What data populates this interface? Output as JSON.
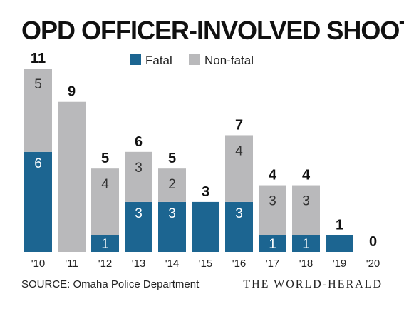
{
  "chart_data": {
    "type": "bar",
    "stacked": true,
    "title": "OPD OFFICER-INVOLVED SHOOTINGS",
    "categories": [
      "'10",
      "'11",
      "'12",
      "'13",
      "'14",
      "'15",
      "'16",
      "'17",
      "'18",
      "'19",
      "'20"
    ],
    "series": [
      {
        "name": "Fatal",
        "color": "#1c6591",
        "values": [
          6,
          0,
          1,
          3,
          3,
          3,
          3,
          1,
          1,
          1,
          0
        ],
        "labels": [
          "6",
          "",
          "1",
          "3",
          "3",
          "",
          "3",
          "1",
          "1",
          "",
          ""
        ]
      },
      {
        "name": "Non-fatal",
        "color": "#b9b9bb",
        "values": [
          5,
          9,
          4,
          3,
          2,
          0,
          4,
          3,
          3,
          0,
          0
        ],
        "labels": [
          "5",
          "",
          "4",
          "3",
          "2",
          "",
          "4",
          "3",
          "3",
          "",
          ""
        ]
      }
    ],
    "totals": [
      "11",
      "9",
      "5",
      "6",
      "5",
      "3",
      "7",
      "4",
      "4",
      "1",
      "0"
    ],
    "ylim": [
      0,
      11
    ],
    "grid": false,
    "legend": "top",
    "xlabel": "",
    "ylabel": ""
  },
  "source": "SOURCE: Omaha Police Department",
  "credit": "THE WORLD-HERALD"
}
